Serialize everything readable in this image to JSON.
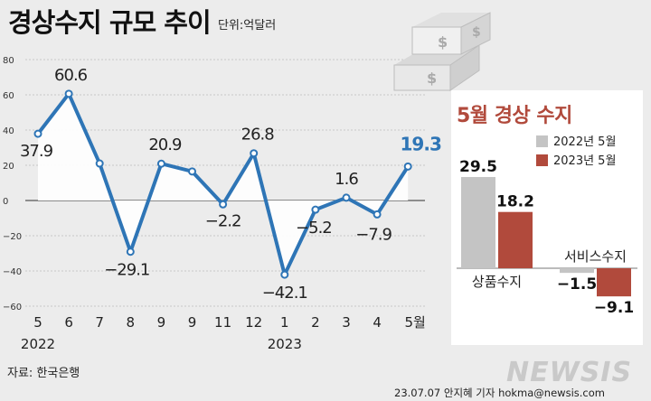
{
  "title": "경상수지 규모 추이",
  "unit_label": "단위:억달러",
  "source": "자료: 한국은행",
  "credit": "23.07.07 안지혜 기자 hokma@newsis.com",
  "logo_text": "NEWSIS",
  "colors": {
    "line": "#2e75b6",
    "line_fill": "#ffffff",
    "highlight_label": "#2e75b6",
    "bar_2022": "#c4c4c4",
    "bar_2023": "#b14a3c",
    "background": "#ececec",
    "panel": "#ffffff"
  },
  "chart_data": [
    {
      "type": "line",
      "title": "경상수지 규모 추이",
      "unit": "단위:억달러",
      "x": [
        "5",
        "6",
        "7",
        "8",
        "9",
        "9",
        "11",
        "12",
        "1",
        "2",
        "3",
        "4",
        "5월"
      ],
      "year_labels": [
        "2022",
        "2023"
      ],
      "series": [
        {
          "values": [
            37.9,
            60.6,
            21,
            -29.1,
            20.9,
            16.5,
            -2.2,
            26.8,
            -42.1,
            -5.2,
            1.6,
            -7.9,
            19.3
          ]
        }
      ],
      "data_labels": [
        "37.9",
        "60.6",
        "",
        "−29.1",
        "20.9",
        "",
        "−2.2",
        "26.8",
        "−42.1",
        "−5.2",
        "1.6",
        "−7.9",
        "19.3"
      ],
      "ylim": [
        -60,
        80
      ],
      "yticks": [
        "80",
        "60",
        "40",
        "20",
        "0",
        "−20",
        "−40",
        "−60"
      ],
      "grid": true
    },
    {
      "type": "bar",
      "title": "5월 경상 수지",
      "categories": [
        "상품수지",
        "서비스수지"
      ],
      "series": [
        {
          "name": "2022년 5월",
          "values": [
            29.5,
            -1.5
          ]
        },
        {
          "name": "2023년 5월",
          "values": [
            18.2,
            -9.1
          ]
        }
      ],
      "data_labels": [
        [
          "29.5",
          "−1.5"
        ],
        [
          "18.2",
          "−9.1"
        ]
      ]
    }
  ]
}
